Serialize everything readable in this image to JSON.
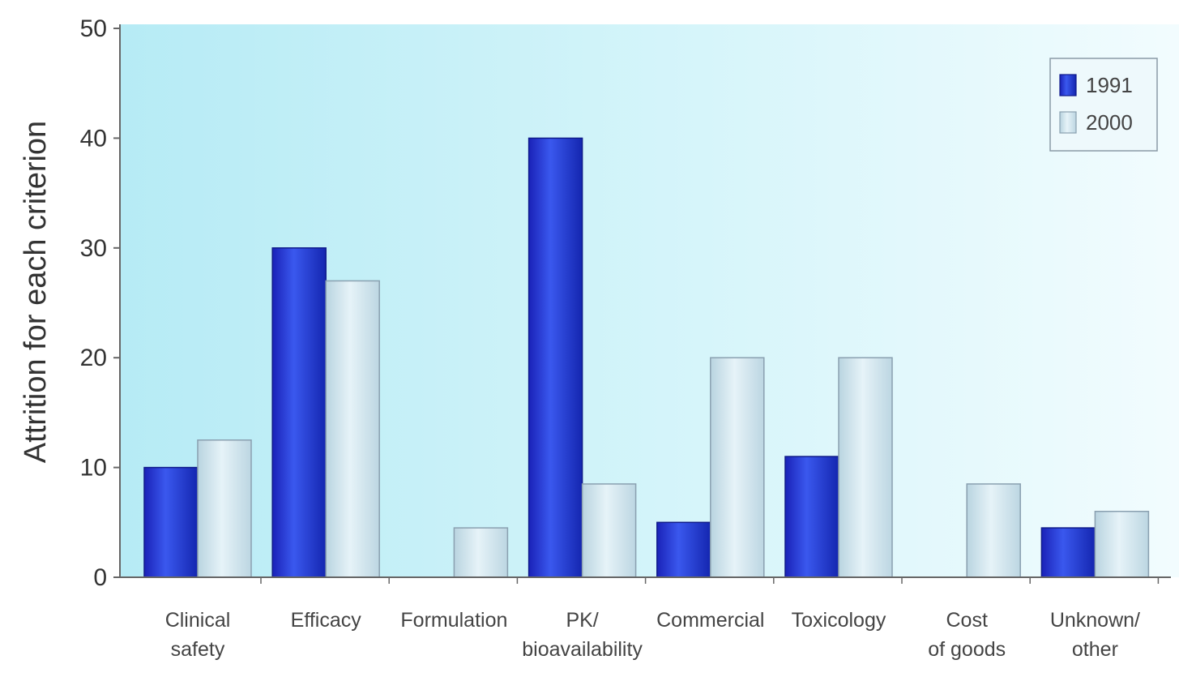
{
  "chart_data": {
    "type": "bar",
    "title": "",
    "xlabel": "",
    "ylabel": "Attrition for each criterion",
    "ylim": [
      0,
      50
    ],
    "yticks": [
      0,
      10,
      20,
      30,
      40,
      50
    ],
    "grid": false,
    "legend_position": "top-right",
    "categories": [
      [
        "Clinical",
        "safety"
      ],
      [
        "Efficacy"
      ],
      [
        "Formulation"
      ],
      [
        "PK/",
        "bioavailability"
      ],
      [
        "Commercial"
      ],
      [
        "Toxicology"
      ],
      [
        "Cost",
        "of goods"
      ],
      [
        "Unknown/",
        "other"
      ]
    ],
    "series": [
      {
        "name": "1991",
        "color": "#1c2fd0",
        "values": [
          10,
          30,
          0,
          40,
          5,
          11,
          0,
          4.5
        ]
      },
      {
        "name": "2000",
        "color": "#c9e3ee",
        "values": [
          12.5,
          27,
          4.5,
          8.5,
          20,
          20,
          8.5,
          6
        ]
      }
    ],
    "colors": {
      "plot_background": "#bfeef7",
      "axis": "#666666",
      "bar_outline": "#8aa0b0"
    }
  }
}
